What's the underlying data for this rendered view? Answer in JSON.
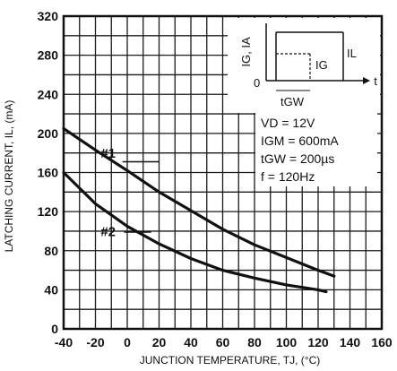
{
  "chart_data": {
    "type": "line",
    "xlabel": "JUNCTION TEMPERATURE, TJ, (°C)",
    "ylabel": "LATCHING CURRENT, IL, (mA)",
    "xlim": [
      -40,
      160
    ],
    "ylim": [
      0,
      320
    ],
    "x_ticks": [
      -40,
      -20,
      0,
      20,
      40,
      60,
      80,
      100,
      120,
      140,
      160
    ],
    "y_ticks": [
      0,
      40,
      80,
      120,
      160,
      200,
      240,
      280,
      320
    ],
    "grid": true,
    "series": [
      {
        "name": "#1",
        "x": [
          -40,
          -20,
          0,
          20,
          40,
          60,
          80,
          100,
          120,
          130
        ],
        "y": [
          205,
          183,
          162,
          140,
          121,
          102,
          86,
          73,
          60,
          54
        ]
      },
      {
        "name": "#2",
        "x": [
          -40,
          -20,
          0,
          20,
          40,
          60,
          80,
          100,
          120,
          125
        ],
        "y": [
          160,
          128,
          105,
          87,
          72,
          60,
          52,
          45,
          40,
          38
        ]
      }
    ],
    "conditions": [
      "VD = 12V",
      "IGM = 600mA",
      "tGW = 200µs",
      "f = 120Hz"
    ],
    "inset": {
      "y_label": "IG, IA",
      "origin_label": "0",
      "t_label": "t",
      "pulse_label": "IG",
      "latch_label": "IL",
      "width_label": "tGW"
    }
  },
  "colors": {
    "line": "#111111",
    "grid": "#1a1a1a",
    "background": "#ffffff"
  }
}
